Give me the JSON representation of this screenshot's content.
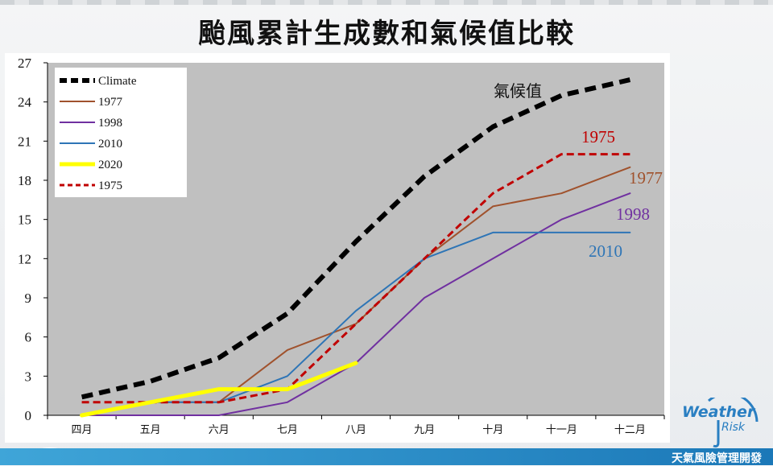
{
  "title": "颱風累計生成數和氣候值比較",
  "footer": {
    "brand_cn": "天氣風險管理開發",
    "logo_weather": "Weather",
    "logo_risk": "Risk"
  },
  "chart_data": {
    "type": "line",
    "categories": [
      "四月",
      "五月",
      "六月",
      "七月",
      "八月",
      "九月",
      "十月",
      "十一月",
      "十二月"
    ],
    "ylim": [
      0,
      27
    ],
    "yticks": [
      0,
      3,
      6,
      9,
      12,
      15,
      18,
      21,
      24,
      27
    ],
    "grid": false,
    "legend_position": "top-left",
    "series": [
      {
        "name": "Climate",
        "color": "#000000",
        "style": "dashed-thick",
        "values": [
          1.4,
          2.6,
          4.4,
          7.8,
          13.3,
          18.3,
          22.1,
          24.5,
          25.7
        ]
      },
      {
        "name": "1977",
        "color": "#a0522d",
        "style": "solid",
        "values": [
          0,
          1,
          1,
          5,
          7,
          12,
          16,
          17,
          19
        ]
      },
      {
        "name": "1998",
        "color": "#7030a0",
        "style": "solid",
        "values": [
          0,
          0,
          0,
          1,
          4,
          9,
          12,
          15,
          17
        ]
      },
      {
        "name": "2010",
        "color": "#2e75b6",
        "style": "solid",
        "values": [
          0,
          1,
          1,
          3,
          8,
          12,
          14,
          14,
          14
        ]
      },
      {
        "name": "2020",
        "color": "#ffff00",
        "style": "solid-thick",
        "values": [
          0,
          1,
          2,
          2,
          4,
          null,
          null,
          null,
          null
        ]
      },
      {
        "name": "1975",
        "color": "#c00000",
        "style": "dashed",
        "values": [
          1,
          1,
          1,
          2,
          7,
          12,
          17,
          20,
          20
        ]
      }
    ],
    "annotations": [
      {
        "text": "氣候值",
        "series": "Climate",
        "color": "#111111"
      },
      {
        "text": "1975",
        "series": "1975",
        "color": "#c00000"
      },
      {
        "text": "1977",
        "series": "1977",
        "color": "#a0522d"
      },
      {
        "text": "1998",
        "series": "1998",
        "color": "#7030a0"
      },
      {
        "text": "2010",
        "series": "2010",
        "color": "#2e75b6"
      }
    ]
  }
}
